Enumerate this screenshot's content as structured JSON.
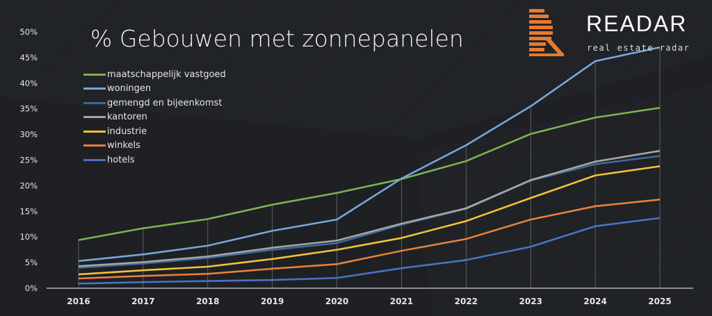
{
  "chart_data": {
    "type": "line",
    "title": "% Gebouwen met zonnepanelen",
    "xlabel": "",
    "ylabel": "",
    "x": [
      "2016",
      "2017",
      "2018",
      "2019",
      "2020",
      "2021",
      "2022",
      "2023",
      "2024",
      "2025"
    ],
    "ylim": [
      0,
      50
    ],
    "yticks": [
      "0%",
      "5%",
      "10%",
      "15%",
      "20%",
      "25%",
      "30%",
      "35%",
      "40%",
      "45%",
      "50%"
    ],
    "grid": "vertical drop lines at each year",
    "legend_position": "top-left",
    "series": [
      {
        "name": "maatschappelijk vastgoed",
        "color": "#7cb350",
        "values": [
          9.4,
          11.7,
          13.5,
          16.3,
          18.6,
          21.3,
          24.8,
          30.1,
          33.3,
          35.2
        ]
      },
      {
        "name": "woningen",
        "color": "#79a6dc",
        "values": [
          5.3,
          6.6,
          8.3,
          11.2,
          13.4,
          21.4,
          27.9,
          35.5,
          44.3,
          47.0
        ]
      },
      {
        "name": "gemengd en bijeenkomst",
        "color": "#3e6a9a",
        "values": [
          4.0,
          4.8,
          5.9,
          7.5,
          8.8,
          12.4,
          15.5,
          21.0,
          24.2,
          25.8
        ]
      },
      {
        "name": "kantoren",
        "color": "#a6a6a6",
        "values": [
          4.3,
          5.1,
          6.2,
          7.9,
          9.3,
          12.6,
          15.6,
          21.1,
          24.7,
          26.8
        ]
      },
      {
        "name": "industrie",
        "color": "#f5c23c",
        "values": [
          2.7,
          3.5,
          4.2,
          5.7,
          7.5,
          9.8,
          13.1,
          17.6,
          22.0,
          23.8
        ]
      },
      {
        "name": "winkels",
        "color": "#e8803c",
        "values": [
          1.9,
          2.4,
          2.8,
          3.8,
          4.7,
          7.3,
          9.6,
          13.4,
          16.0,
          17.3
        ]
      },
      {
        "name": "hotels",
        "color": "#4a72c4",
        "values": [
          0.9,
          1.2,
          1.4,
          1.6,
          2.0,
          3.9,
          5.5,
          8.1,
          12.1,
          13.7
        ]
      }
    ]
  },
  "brand": {
    "name": "READAR",
    "tagline": "real estate radar",
    "logo": "orange-striped-R",
    "color": "#e87a2e"
  }
}
